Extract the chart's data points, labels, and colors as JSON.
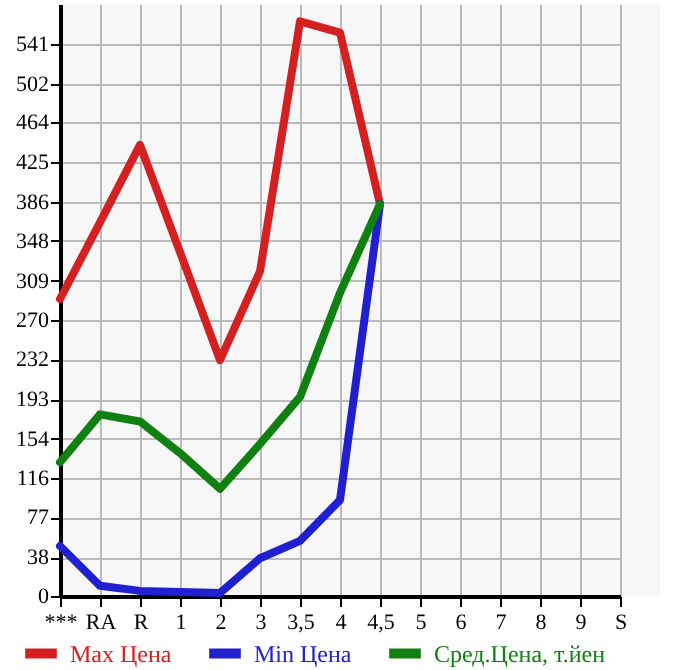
{
  "chart_data": {
    "type": "line",
    "categories": [
      "***",
      "RA",
      "R",
      "1",
      "2",
      "3",
      "3,5",
      "4",
      "4,5",
      "5",
      "6",
      "7",
      "8",
      "9",
      "S"
    ],
    "series": [
      {
        "name": "Max Цена",
        "color": "#d42020",
        "values": [
          291,
          366,
          442,
          337,
          231,
          318,
          563,
          552,
          384,
          null,
          null,
          null,
          null,
          null,
          null
        ]
      },
      {
        "name": "Min Цена",
        "color": "#2020d0",
        "values": [
          49,
          10,
          5,
          4,
          3,
          37,
          54,
          94,
          384,
          null,
          null,
          null,
          null,
          null,
          null
        ]
      },
      {
        "name": "Сред.Цена, т.йен",
        "color": "#108010",
        "values": [
          131,
          178,
          171,
          140,
          105,
          149,
          195,
          297,
          384,
          null,
          null,
          null,
          null,
          null,
          null
        ]
      }
    ],
    "ylim": [
      0,
      580
    ],
    "yticks": [
      0,
      38,
      77,
      116,
      154,
      193,
      232,
      270,
      309,
      348,
      386,
      425,
      464,
      502,
      541
    ],
    "grid": true,
    "legend": "bottom",
    "marker": "none",
    "line_style": "solid"
  }
}
